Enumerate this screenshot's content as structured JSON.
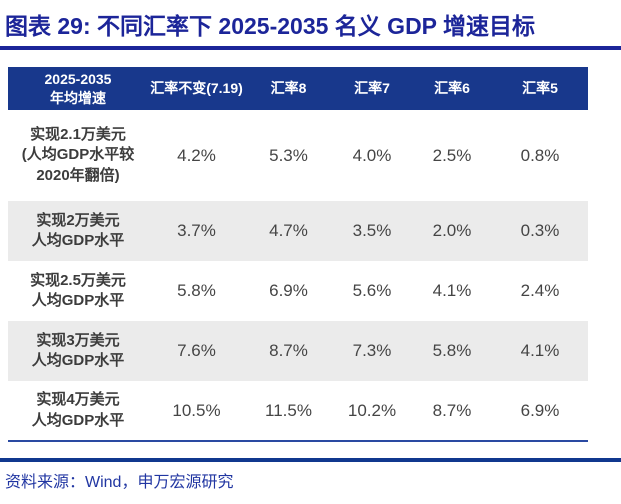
{
  "title": "图表 29: 不同汇率下 2025-2035 名义 GDP 增速目标",
  "table": {
    "headers": [
      "2025-2035\n年均增速",
      "汇率不变(7.19)",
      "汇率8",
      "汇率7",
      "汇率6",
      "汇率5"
    ],
    "rows": [
      {
        "label": "实现2.1万美元\n(人均GDP水平较\n2020年翻倍)",
        "values": [
          "4.2%",
          "5.3%",
          "4.0%",
          "2.5%",
          "0.8%"
        ]
      },
      {
        "label": "实现2万美元\n人均GDP水平",
        "values": [
          "3.7%",
          "4.7%",
          "3.5%",
          "2.0%",
          "0.3%"
        ]
      },
      {
        "label": "实现2.5万美元\n人均GDP水平",
        "values": [
          "5.8%",
          "6.9%",
          "5.6%",
          "4.1%",
          "2.4%"
        ]
      },
      {
        "label": "实现3万美元\n人均GDP水平",
        "values": [
          "7.6%",
          "8.7%",
          "7.3%",
          "5.8%",
          "4.1%"
        ]
      },
      {
        "label": "实现4万美元\n人均GDP水平",
        "values": [
          "10.5%",
          "11.5%",
          "10.2%",
          "8.7%",
          "6.9%"
        ]
      }
    ]
  },
  "source_note": "资料来源：Wind，申万宏源研究",
  "colors": {
    "title_blue": "#1C2599",
    "header_bg": "#18388C",
    "header_text": "#FFFFFF",
    "row_stripe_gray": "#EBEBEB",
    "value_text": "#454545",
    "label_text": "#3C3C3C",
    "table_bottom_rule": "#2A4AA2",
    "section_divider_navy": "#10388E",
    "source_blue": "#2136A2"
  }
}
